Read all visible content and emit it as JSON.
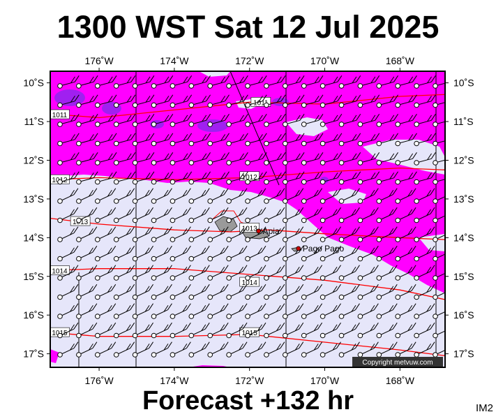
{
  "header": {
    "title": "1300 WST Sat 12 Jul 2025"
  },
  "footer": {
    "forecast": "Forecast +132 hr",
    "code": "IM2"
  },
  "map": {
    "lon_range": [
      -177.3,
      -166.8
    ],
    "lat_range": [
      -17.35,
      -9.7
    ],
    "lon_ticks": [
      {
        "value": -176,
        "label": "176˚W"
      },
      {
        "value": -174,
        "label": "174˚W"
      },
      {
        "value": -172,
        "label": "172˚W"
      },
      {
        "value": -170,
        "label": "170˚W"
      },
      {
        "value": -168,
        "label": "168˚W"
      }
    ],
    "lat_ticks": [
      {
        "value": -10,
        "label": "10˚S"
      },
      {
        "value": -11,
        "label": "11˚S"
      },
      {
        "value": -12,
        "label": "12˚S"
      },
      {
        "value": -13,
        "label": "13˚S"
      },
      {
        "value": -14,
        "label": "14˚S"
      },
      {
        "value": -15,
        "label": "15˚S"
      },
      {
        "value": -16,
        "label": "16˚S"
      },
      {
        "value": -17,
        "label": "17˚S"
      }
    ],
    "colors": {
      "magenta": "#ff00ff",
      "purple": "#a020f0",
      "lavender": "#e6e6fa",
      "isobar": "#ff0000",
      "land": "#9a9a9a",
      "frame": "#000000"
    },
    "isobars": [
      {
        "label": "1011",
        "points": [
          [
            -177.3,
            -10.8
          ],
          [
            -176,
            -10.9
          ],
          [
            -174,
            -10.7
          ],
          [
            -172,
            -10.5
          ],
          [
            -170,
            -10.55
          ],
          [
            -168,
            -10.35
          ],
          [
            -166.8,
            -10.3
          ]
        ]
      },
      {
        "label": "1012",
        "points": [
          [
            -177.3,
            -12.5
          ],
          [
            -176,
            -12.45
          ],
          [
            -174,
            -12.5
          ],
          [
            -172,
            -12.45
          ],
          [
            -170,
            -12.3
          ],
          [
            -168,
            -12.2
          ],
          [
            -166.8,
            -12.25
          ]
        ]
      },
      {
        "label": "1013",
        "points": [
          [
            -177.3,
            -13.5
          ],
          [
            -176,
            -13.65
          ],
          [
            -174,
            -13.8
          ],
          [
            -172.5,
            -13.85
          ],
          [
            -171.5,
            -13.8
          ],
          [
            -170,
            -13.9
          ],
          [
            -168,
            -14.0
          ],
          [
            -166.8,
            -14.05
          ]
        ]
      },
      {
        "label": "1014",
        "points": [
          [
            -177.3,
            -14.85
          ],
          [
            -176,
            -14.8
          ],
          [
            -174,
            -14.8
          ],
          [
            -172,
            -14.95
          ],
          [
            -170,
            -15.1
          ],
          [
            -168,
            -15.35
          ],
          [
            -166.8,
            -15.6
          ]
        ]
      },
      {
        "label": "1015",
        "points": [
          [
            -177.3,
            -16.45
          ],
          [
            -176,
            -16.55
          ],
          [
            -174,
            -16.55
          ],
          [
            -172,
            -16.5
          ],
          [
            -170,
            -16.7
          ],
          [
            -168,
            -16.9
          ],
          [
            -166.8,
            -17.05
          ]
        ]
      }
    ],
    "isobar_labels": [
      {
        "text": "1011",
        "lon": -177.05,
        "lat": -10.82
      },
      {
        "text": "1011",
        "lon": -171.7,
        "lat": -10.5
      },
      {
        "text": "1012",
        "lon": -177.05,
        "lat": -12.5
      },
      {
        "text": "1012",
        "lon": -172.0,
        "lat": -12.42
      },
      {
        "text": "1013",
        "lon": -176.5,
        "lat": -13.58
      },
      {
        "text": "1013",
        "lon": -172.0,
        "lat": -13.75
      },
      {
        "text": "1014",
        "lon": -177.05,
        "lat": -14.85
      },
      {
        "text": "1014",
        "lon": -172.0,
        "lat": -15.15
      },
      {
        "text": "1015",
        "lon": -177.05,
        "lat": -16.45
      },
      {
        "text": "1015",
        "lon": -172.0,
        "lat": -16.45
      }
    ],
    "places": [
      {
        "name": "Apia",
        "lon": -171.76,
        "lat": -13.83
      },
      {
        "name": "Pago Pago",
        "lon": -170.7,
        "lat": -14.28
      }
    ],
    "copyright": "Copyright metvuw.com"
  }
}
